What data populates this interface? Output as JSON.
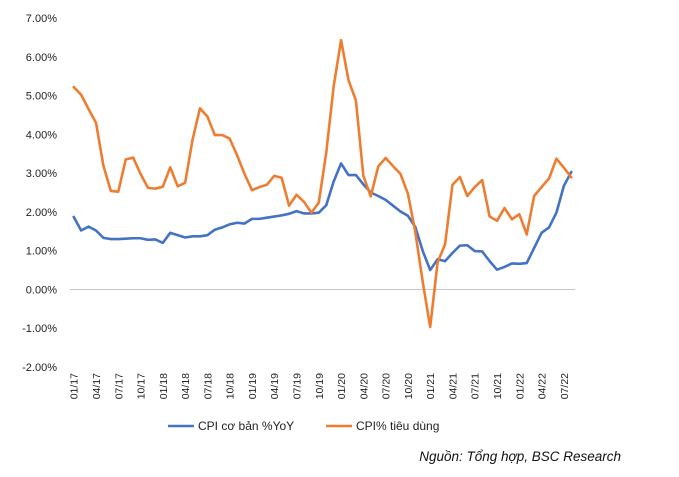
{
  "chart_data": {
    "type": "line",
    "ylim": [
      -2,
      7
    ],
    "yticks": [
      7,
      6,
      5,
      4,
      3,
      2,
      1,
      0,
      -1,
      -2
    ],
    "ytick_labels": [
      "7.00%",
      "6.00%",
      "5.00%",
      "4.00%",
      "3.00%",
      "2.00%",
      "1.00%",
      "0.00%",
      "-1.00%",
      "-2.00%"
    ],
    "x": [
      "01/17",
      "02/17",
      "03/17",
      "04/17",
      "05/17",
      "06/17",
      "07/17",
      "08/17",
      "09/17",
      "10/17",
      "11/17",
      "12/17",
      "01/18",
      "02/18",
      "03/18",
      "04/18",
      "05/18",
      "06/18",
      "07/18",
      "08/18",
      "09/18",
      "10/18",
      "11/18",
      "12/18",
      "01/19",
      "02/19",
      "03/19",
      "04/19",
      "05/19",
      "06/19",
      "07/19",
      "08/19",
      "09/19",
      "10/19",
      "11/19",
      "12/19",
      "01/20",
      "02/20",
      "03/20",
      "04/20",
      "05/20",
      "06/20",
      "07/20",
      "08/20",
      "09/20",
      "10/20",
      "11/20",
      "12/20",
      "01/21",
      "02/21",
      "03/21",
      "04/21",
      "05/21",
      "06/21",
      "07/21",
      "08/21",
      "09/21",
      "10/21",
      "11/21",
      "12/21",
      "01/22",
      "02/22",
      "03/22",
      "04/22",
      "05/22",
      "06/22",
      "07/22",
      "08/22"
    ],
    "xtick_labels": [
      "01/17",
      "04/17",
      "07/17",
      "10/17",
      "01/18",
      "04/18",
      "07/18",
      "10/18",
      "01/19",
      "04/19",
      "07/19",
      "10/19",
      "01/20",
      "04/20",
      "07/20",
      "10/20",
      "01/21",
      "04/21",
      "07/21",
      "10/21",
      "01/22",
      "04/22",
      "07/22"
    ],
    "grid": false,
    "legend_position": "bottom",
    "series": [
      {
        "name": "CPI cơ bản %YoY",
        "color": "#4472C4",
        "values": [
          1.87,
          1.52,
          1.62,
          1.52,
          1.33,
          1.3,
          1.3,
          1.31,
          1.32,
          1.32,
          1.28,
          1.29,
          1.2,
          1.46,
          1.4,
          1.34,
          1.37,
          1.37,
          1.4,
          1.54,
          1.6,
          1.68,
          1.72,
          1.7,
          1.82,
          1.82,
          1.85,
          1.88,
          1.91,
          1.95,
          2.02,
          1.96,
          1.96,
          1.98,
          2.17,
          2.78,
          3.25,
          2.95,
          2.95,
          2.71,
          2.5,
          2.41,
          2.31,
          2.16,
          2.01,
          1.9,
          1.61,
          0.99,
          0.5,
          0.78,
          0.73,
          0.94,
          1.13,
          1.14,
          0.99,
          0.98,
          0.73,
          0.51,
          0.58,
          0.67,
          0.66,
          0.68,
          1.07,
          1.46,
          1.6,
          1.98,
          2.67,
          3.03
        ]
      },
      {
        "name": "CPI% tiêu dùng",
        "color": "#ED7D31",
        "values": [
          5.22,
          5.02,
          4.65,
          4.3,
          3.19,
          2.54,
          2.52,
          3.35,
          3.4,
          2.98,
          2.62,
          2.6,
          2.65,
          3.15,
          2.66,
          2.75,
          3.86,
          4.67,
          4.46,
          3.98,
          3.98,
          3.89,
          3.46,
          2.98,
          2.56,
          2.64,
          2.7,
          2.93,
          2.88,
          2.16,
          2.44,
          2.26,
          1.98,
          2.24,
          3.52,
          5.23,
          6.43,
          5.4,
          4.87,
          2.93,
          2.4,
          3.17,
          3.39,
          3.18,
          2.98,
          2.47,
          1.48,
          0.19,
          -0.97,
          0.7,
          1.16,
          2.7,
          2.9,
          2.41,
          2.64,
          2.82,
          1.88,
          1.77,
          2.1,
          1.81,
          1.94,
          1.42,
          2.41,
          2.64,
          2.86,
          3.37,
          3.14,
          2.89
        ]
      }
    ],
    "source_note": "Nguồn: Tổng hợp, BSC Research"
  }
}
